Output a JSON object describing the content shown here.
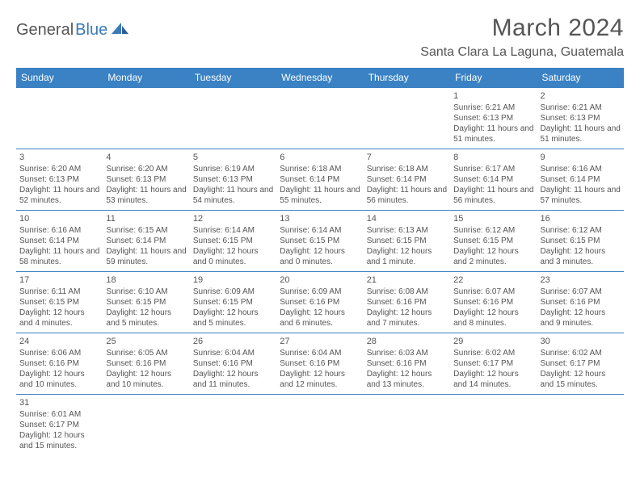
{
  "logo": {
    "part1": "General",
    "part2": "Blue"
  },
  "title": "March 2024",
  "location": "Santa Clara La Laguna, Guatemala",
  "colors": {
    "header_bg": "#3a82c4",
    "header_text": "#ffffff",
    "border": "#3a82c4",
    "text": "#555555",
    "logo_blue": "#3a7ab8"
  },
  "dayHeaders": [
    "Sunday",
    "Monday",
    "Tuesday",
    "Wednesday",
    "Thursday",
    "Friday",
    "Saturday"
  ],
  "weeks": [
    [
      null,
      null,
      null,
      null,
      null,
      {
        "d": "1",
        "sr": "6:21 AM",
        "ss": "6:13 PM",
        "dl": "11 hours and 51 minutes."
      },
      {
        "d": "2",
        "sr": "6:21 AM",
        "ss": "6:13 PM",
        "dl": "11 hours and 51 minutes."
      }
    ],
    [
      {
        "d": "3",
        "sr": "6:20 AM",
        "ss": "6:13 PM",
        "dl": "11 hours and 52 minutes."
      },
      {
        "d": "4",
        "sr": "6:20 AM",
        "ss": "6:13 PM",
        "dl": "11 hours and 53 minutes."
      },
      {
        "d": "5",
        "sr": "6:19 AM",
        "ss": "6:13 PM",
        "dl": "11 hours and 54 minutes."
      },
      {
        "d": "6",
        "sr": "6:18 AM",
        "ss": "6:14 PM",
        "dl": "11 hours and 55 minutes."
      },
      {
        "d": "7",
        "sr": "6:18 AM",
        "ss": "6:14 PM",
        "dl": "11 hours and 56 minutes."
      },
      {
        "d": "8",
        "sr": "6:17 AM",
        "ss": "6:14 PM",
        "dl": "11 hours and 56 minutes."
      },
      {
        "d": "9",
        "sr": "6:16 AM",
        "ss": "6:14 PM",
        "dl": "11 hours and 57 minutes."
      }
    ],
    [
      {
        "d": "10",
        "sr": "6:16 AM",
        "ss": "6:14 PM",
        "dl": "11 hours and 58 minutes."
      },
      {
        "d": "11",
        "sr": "6:15 AM",
        "ss": "6:14 PM",
        "dl": "11 hours and 59 minutes."
      },
      {
        "d": "12",
        "sr": "6:14 AM",
        "ss": "6:15 PM",
        "dl": "12 hours and 0 minutes."
      },
      {
        "d": "13",
        "sr": "6:14 AM",
        "ss": "6:15 PM",
        "dl": "12 hours and 0 minutes."
      },
      {
        "d": "14",
        "sr": "6:13 AM",
        "ss": "6:15 PM",
        "dl": "12 hours and 1 minute."
      },
      {
        "d": "15",
        "sr": "6:12 AM",
        "ss": "6:15 PM",
        "dl": "12 hours and 2 minutes."
      },
      {
        "d": "16",
        "sr": "6:12 AM",
        "ss": "6:15 PM",
        "dl": "12 hours and 3 minutes."
      }
    ],
    [
      {
        "d": "17",
        "sr": "6:11 AM",
        "ss": "6:15 PM",
        "dl": "12 hours and 4 minutes."
      },
      {
        "d": "18",
        "sr": "6:10 AM",
        "ss": "6:15 PM",
        "dl": "12 hours and 5 minutes."
      },
      {
        "d": "19",
        "sr": "6:09 AM",
        "ss": "6:15 PM",
        "dl": "12 hours and 5 minutes."
      },
      {
        "d": "20",
        "sr": "6:09 AM",
        "ss": "6:16 PM",
        "dl": "12 hours and 6 minutes."
      },
      {
        "d": "21",
        "sr": "6:08 AM",
        "ss": "6:16 PM",
        "dl": "12 hours and 7 minutes."
      },
      {
        "d": "22",
        "sr": "6:07 AM",
        "ss": "6:16 PM",
        "dl": "12 hours and 8 minutes."
      },
      {
        "d": "23",
        "sr": "6:07 AM",
        "ss": "6:16 PM",
        "dl": "12 hours and 9 minutes."
      }
    ],
    [
      {
        "d": "24",
        "sr": "6:06 AM",
        "ss": "6:16 PM",
        "dl": "12 hours and 10 minutes."
      },
      {
        "d": "25",
        "sr": "6:05 AM",
        "ss": "6:16 PM",
        "dl": "12 hours and 10 minutes."
      },
      {
        "d": "26",
        "sr": "6:04 AM",
        "ss": "6:16 PM",
        "dl": "12 hours and 11 minutes."
      },
      {
        "d": "27",
        "sr": "6:04 AM",
        "ss": "6:16 PM",
        "dl": "12 hours and 12 minutes."
      },
      {
        "d": "28",
        "sr": "6:03 AM",
        "ss": "6:16 PM",
        "dl": "12 hours and 13 minutes."
      },
      {
        "d": "29",
        "sr": "6:02 AM",
        "ss": "6:17 PM",
        "dl": "12 hours and 14 minutes."
      },
      {
        "d": "30",
        "sr": "6:02 AM",
        "ss": "6:17 PM",
        "dl": "12 hours and 15 minutes."
      }
    ],
    [
      {
        "d": "31",
        "sr": "6:01 AM",
        "ss": "6:17 PM",
        "dl": "12 hours and 15 minutes."
      },
      null,
      null,
      null,
      null,
      null,
      null
    ]
  ],
  "labels": {
    "sunrise": "Sunrise:",
    "sunset": "Sunset:",
    "daylight": "Daylight:"
  }
}
